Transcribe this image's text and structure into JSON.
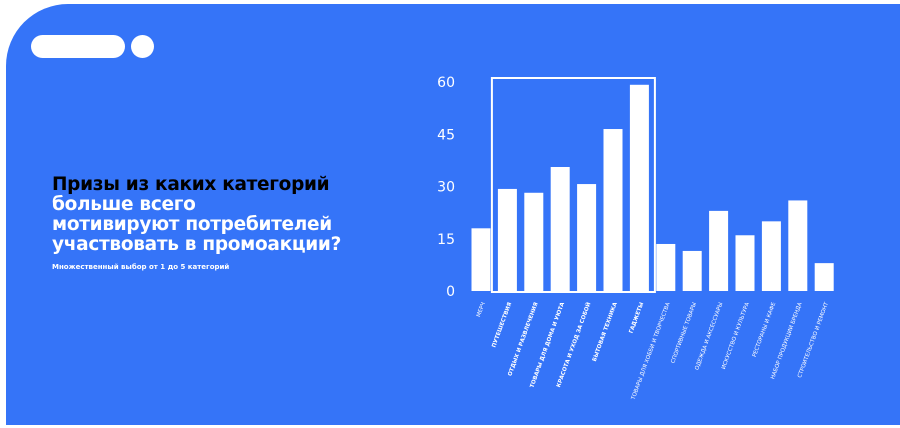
{
  "title": {
    "line1": "Призы из каких категорий",
    "line2": "больше всего",
    "line3": "мотивируют потребителей",
    "line4": "участвовать в промоакции?"
  },
  "subtitle": "Множественный выбор от 1 до 5 категорий",
  "colors": {
    "background": "#3574f8",
    "bars": "#ffffff",
    "title_dark": "#000000"
  },
  "chart_data": {
    "type": "bar",
    "categories": [
      "МЕРЧ",
      "ПУТЕШЕСТВИЯ",
      "ОТДЫХ И РАЗВЛЕЧЕНИЯ",
      "ТОВАРЫ ДЛЯ ДОМА И УЮТА",
      "КРАСОТА И УХОД ЗА СОБОЙ",
      "БЫТОВАЯ ТЕХНИКА",
      "ГАДЖЕТЫ",
      "ТОВАРЫ ДЛЯ ХОББИ И ТВОРЧЕСТВА",
      "СПОРТИВНЫЕ ТОВАРЫ",
      "ОДЕЖДА И АКСЕССУАРЫ",
      "ИСКУССТВО И КУЛЬТУРА",
      "РЕСТОРАНЫ И КАФЕ",
      "НАБОР ПРОДУКЦИИ БРЕНДА",
      "СТРОИТЕЛЬСТВО И РЕМОНТ"
    ],
    "values": [
      18,
      29.3,
      28.2,
      35.6,
      30.7,
      46.5,
      59.2,
      13.5,
      11.5,
      23,
      16,
      20,
      26,
      8
    ],
    "highlighted": [
      "ПУТЕШЕСТВИЯ",
      "ОТДЫХ И РАЗВЛЕЧЕНИЯ",
      "ТОВАРЫ ДЛЯ ДОМА И УЮТА",
      "КРАСОТА И УХОД ЗА СОБОЙ",
      "БЫТОВАЯ ТЕХНИКА",
      "ГАДЖЕТЫ"
    ],
    "yticks": [
      "0",
      "15",
      "30",
      "45",
      "60"
    ],
    "ylim": [
      0,
      60
    ],
    "grid": false
  }
}
